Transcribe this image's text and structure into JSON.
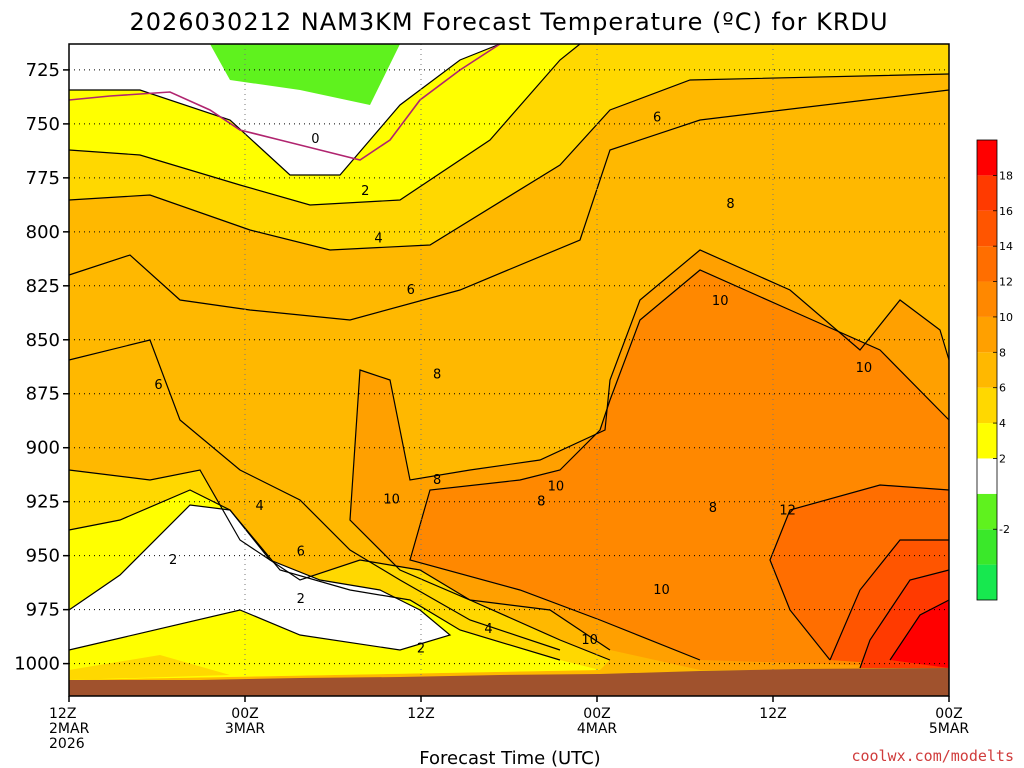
{
  "chart_data": {
    "type": "heatmap",
    "subtype": "filled-contour time-height cross section",
    "title": "2026030212 NAM3KM Forecast Temperature (ºC) for KRDU",
    "xlabel": "Forecast Time (UTC)",
    "ylabel": "",
    "y_axis": {
      "ticks": [
        725,
        750,
        775,
        800,
        825,
        850,
        875,
        900,
        925,
        950,
        975,
        1000
      ],
      "ylim": [
        1015,
        713
      ],
      "inverted": true
    },
    "x_axis": {
      "xlim": [
        0,
        60
      ],
      "ticks": [
        {
          "hours": 0,
          "lines": [
            "12Z",
            "2MAR",
            "2026"
          ]
        },
        {
          "hours": 12,
          "lines": [
            "00Z",
            "3MAR"
          ]
        },
        {
          "hours": 24,
          "lines": [
            "12Z"
          ]
        },
        {
          "hours": 36,
          "lines": [
            "00Z",
            "4MAR"
          ]
        },
        {
          "hours": 48,
          "lines": [
            "12Z"
          ]
        },
        {
          "hours": 60,
          "lines": [
            "00Z",
            "5MAR"
          ]
        }
      ]
    },
    "grid": "dotted",
    "colorbar": {
      "position": "right",
      "labels": [
        -2,
        2,
        4,
        6,
        8,
        10,
        12,
        14,
        16,
        18
      ],
      "bands": [
        {
          "min": -6,
          "max": -4,
          "color": "#17e84f"
        },
        {
          "min": -4,
          "max": -2,
          "color": "#3ae82a"
        },
        {
          "min": -2,
          "max": 0,
          "color": "#5ff21e"
        },
        {
          "min": 0,
          "max": 2,
          "color": "#ffffff"
        },
        {
          "min": 2,
          "max": 4,
          "color": "#ffff00"
        },
        {
          "min": 4,
          "max": 6,
          "color": "#ffd800"
        },
        {
          "min": 6,
          "max": 8,
          "color": "#ffb800"
        },
        {
          "min": 8,
          "max": 10,
          "color": "#ffa000"
        },
        {
          "min": 10,
          "max": 12,
          "color": "#ff8800"
        },
        {
          "min": 12,
          "max": 14,
          "color": "#ff6e00"
        },
        {
          "min": 14,
          "max": 16,
          "color": "#ff5500"
        },
        {
          "min": 16,
          "max": 18,
          "color": "#ff3a00"
        },
        {
          "min": 18,
          "max": 20,
          "color": "#ff0000"
        }
      ]
    },
    "contour_labels": [
      {
        "t": 16.8,
        "p": 757,
        "value": 0
      },
      {
        "t": 20.2,
        "p": 781,
        "value": 2
      },
      {
        "t": 21.1,
        "p": 803,
        "value": 4
      },
      {
        "t": 23.3,
        "p": 827,
        "value": 6
      },
      {
        "t": 25.1,
        "p": 866,
        "value": 8
      },
      {
        "t": 33.2,
        "p": 918,
        "value": 10
      },
      {
        "t": 40.1,
        "p": 747,
        "value": 6
      },
      {
        "t": 45.1,
        "p": 787,
        "value": 8
      },
      {
        "t": 44.4,
        "p": 832,
        "value": 10
      },
      {
        "t": 54.2,
        "p": 863,
        "value": 10
      },
      {
        "t": 6.1,
        "p": 871,
        "value": 6
      },
      {
        "t": 13.0,
        "p": 927,
        "value": 4
      },
      {
        "t": 15.8,
        "p": 948,
        "value": 6
      },
      {
        "t": 22.0,
        "p": 924,
        "value": 10
      },
      {
        "t": 25.1,
        "p": 915,
        "value": 8
      },
      {
        "t": 32.2,
        "p": 925,
        "value": 8
      },
      {
        "t": 43.9,
        "p": 928,
        "value": 8
      },
      {
        "t": 49.0,
        "p": 929,
        "value": 12
      },
      {
        "t": 40.4,
        "p": 966,
        "value": 10
      },
      {
        "t": 35.5,
        "p": 989,
        "value": 10
      },
      {
        "t": 7.1,
        "p": 952,
        "value": 2
      },
      {
        "t": 15.8,
        "p": 970,
        "value": 2
      },
      {
        "t": 24.0,
        "p": 993,
        "value": 2
      },
      {
        "t": 28.6,
        "p": 984,
        "value": 4
      }
    ],
    "freezing_level_color": "#b0246f",
    "terrain_color": "#a0522d"
  },
  "credit": "coolwx.com/modelts"
}
